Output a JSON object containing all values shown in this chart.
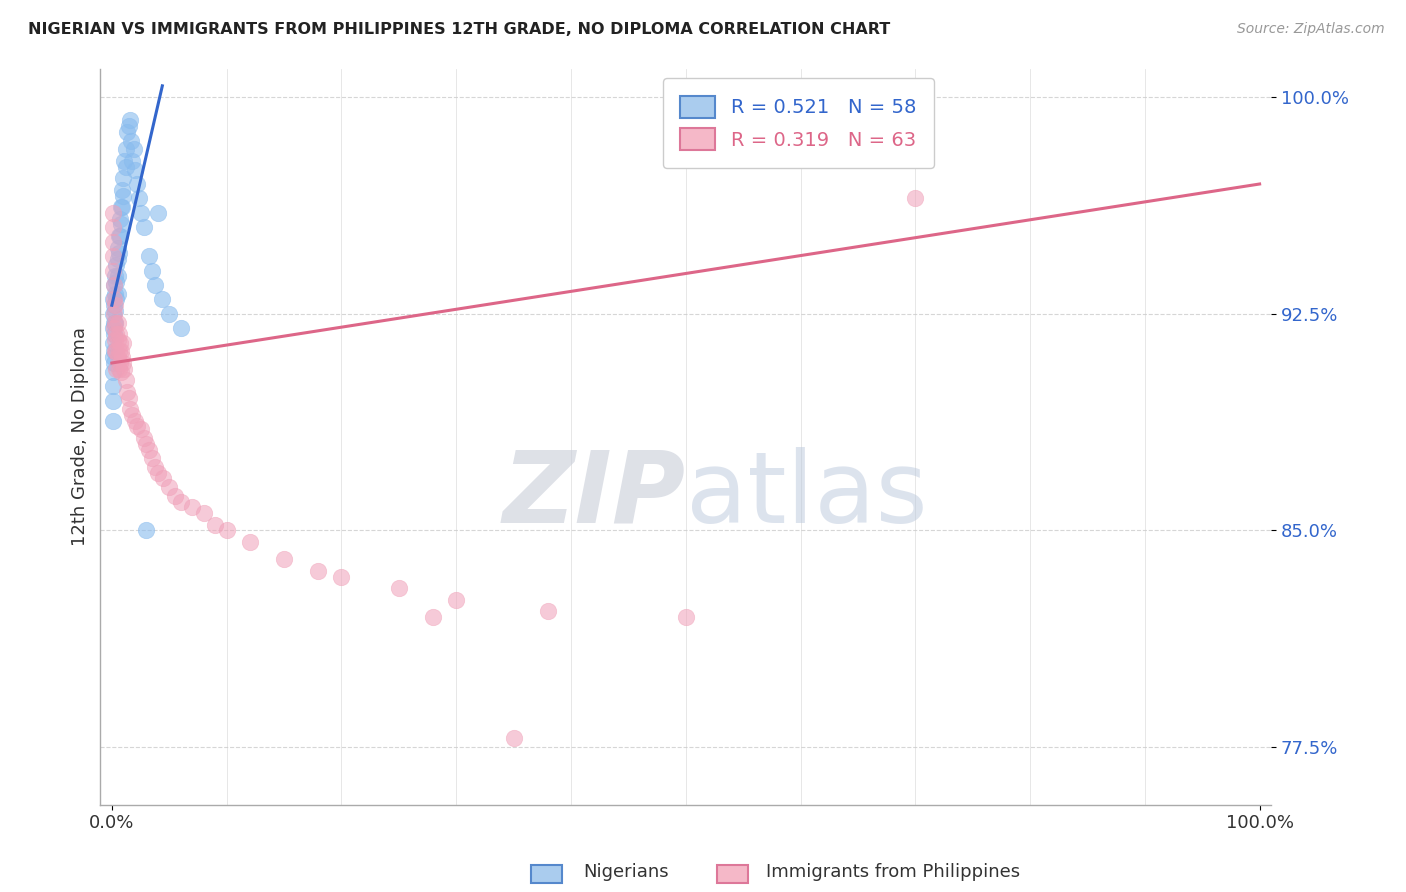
{
  "title": "NIGERIAN VS IMMIGRANTS FROM PHILIPPINES 12TH GRADE, NO DIPLOMA CORRELATION CHART",
  "source": "Source: ZipAtlas.com",
  "ylabel": "12th Grade, No Diploma",
  "blue_color": "#88bbee",
  "pink_color": "#f0a0b8",
  "blue_line_color": "#3366cc",
  "pink_line_color": "#dd6688",
  "background_color": "#ffffff",
  "grid_color": "#cccccc",
  "ylim": [
    0.755,
    1.01
  ],
  "xlim": [
    -0.01,
    1.01
  ],
  "y_ticks": [
    0.775,
    0.85,
    0.925,
    1.0
  ],
  "x_ticks": [
    0.0,
    1.0
  ],
  "x_tick_labels": [
    "0.0%",
    "100.0%"
  ],
  "blue_scatter_x": [
    0.001,
    0.001,
    0.001,
    0.001,
    0.001,
    0.001,
    0.001,
    0.001,
    0.001,
    0.002,
    0.002,
    0.002,
    0.002,
    0.002,
    0.002,
    0.003,
    0.003,
    0.003,
    0.003,
    0.004,
    0.004,
    0.004,
    0.005,
    0.005,
    0.005,
    0.005,
    0.006,
    0.006,
    0.007,
    0.007,
    0.008,
    0.008,
    0.009,
    0.009,
    0.01,
    0.01,
    0.011,
    0.012,
    0.012,
    0.013,
    0.015,
    0.016,
    0.017,
    0.018,
    0.019,
    0.02,
    0.022,
    0.024,
    0.025,
    0.028,
    0.03,
    0.032,
    0.035,
    0.038,
    0.04,
    0.044,
    0.05,
    0.06
  ],
  "blue_scatter_y": [
    0.93,
    0.925,
    0.92,
    0.915,
    0.91,
    0.905,
    0.9,
    0.895,
    0.888,
    0.935,
    0.928,
    0.922,
    0.918,
    0.912,
    0.908,
    0.938,
    0.932,
    0.926,
    0.922,
    0.942,
    0.936,
    0.93,
    0.948,
    0.944,
    0.938,
    0.932,
    0.952,
    0.946,
    0.958,
    0.952,
    0.962,
    0.956,
    0.968,
    0.962,
    0.972,
    0.966,
    0.978,
    0.982,
    0.976,
    0.988,
    0.99,
    0.992,
    0.985,
    0.978,
    0.982,
    0.975,
    0.97,
    0.965,
    0.96,
    0.955,
    0.85,
    0.945,
    0.94,
    0.935,
    0.96,
    0.93,
    0.925,
    0.92
  ],
  "pink_scatter_x": [
    0.001,
    0.001,
    0.001,
    0.001,
    0.001,
    0.002,
    0.002,
    0.002,
    0.002,
    0.003,
    0.003,
    0.003,
    0.003,
    0.004,
    0.004,
    0.004,
    0.005,
    0.005,
    0.005,
    0.006,
    0.006,
    0.006,
    0.007,
    0.007,
    0.008,
    0.008,
    0.009,
    0.01,
    0.01,
    0.011,
    0.012,
    0.013,
    0.015,
    0.016,
    0.018,
    0.02,
    0.022,
    0.025,
    0.028,
    0.03,
    0.032,
    0.035,
    0.038,
    0.04,
    0.045,
    0.05,
    0.055,
    0.06,
    0.07,
    0.08,
    0.09,
    0.1,
    0.12,
    0.15,
    0.18,
    0.2,
    0.25,
    0.3,
    0.38,
    0.5,
    0.35,
    0.28,
    0.7
  ],
  "pink_scatter_y": [
    0.96,
    0.955,
    0.95,
    0.945,
    0.94,
    0.935,
    0.93,
    0.925,
    0.92,
    0.928,
    0.922,
    0.916,
    0.912,
    0.918,
    0.912,
    0.906,
    0.922,
    0.916,
    0.91,
    0.918,
    0.912,
    0.906,
    0.915,
    0.908,
    0.912,
    0.905,
    0.91,
    0.915,
    0.908,
    0.906,
    0.902,
    0.898,
    0.896,
    0.892,
    0.89,
    0.888,
    0.886,
    0.885,
    0.882,
    0.88,
    0.878,
    0.875,
    0.872,
    0.87,
    0.868,
    0.865,
    0.862,
    0.86,
    0.858,
    0.856,
    0.852,
    0.85,
    0.846,
    0.84,
    0.836,
    0.834,
    0.83,
    0.826,
    0.822,
    0.82,
    0.778,
    0.82,
    0.965
  ],
  "blue_line": {
    "x0": 0.0,
    "x1": 0.044,
    "y0": 0.928,
    "y1": 1.004
  },
  "pink_line": {
    "x0": 0.0,
    "x1": 1.0,
    "y0": 0.908,
    "y1": 0.97
  }
}
